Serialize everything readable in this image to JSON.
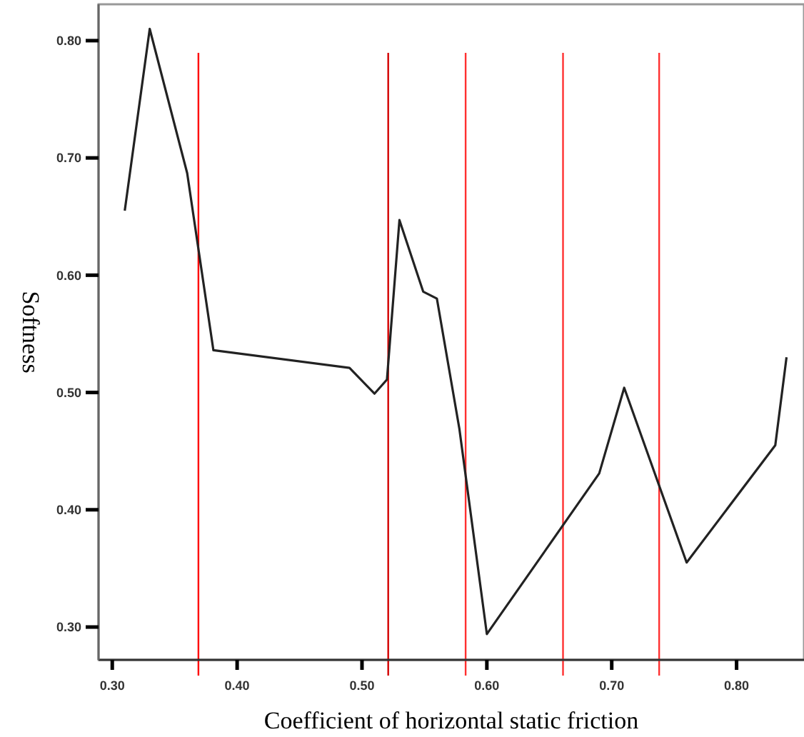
{
  "chart_data": {
    "type": "line",
    "xlabel": "Coefficient of horizontal static friction",
    "ylabel": "Softness",
    "xlim": [
      0.289,
      0.854
    ],
    "ylim": [
      0.272,
      0.831
    ],
    "xticks": [
      {
        "value": 0.3,
        "label": "0.30"
      },
      {
        "value": 0.4,
        "label": "0.40"
      },
      {
        "value": 0.5,
        "label": "0.50"
      },
      {
        "value": 0.6,
        "label": "0.60"
      },
      {
        "value": 0.7,
        "label": "0.70"
      },
      {
        "value": 0.8,
        "label": "0.80"
      }
    ],
    "yticks": [
      {
        "value": 0.3,
        "label": "0.30"
      },
      {
        "value": 0.4,
        "label": "0.40"
      },
      {
        "value": 0.5,
        "label": "0.50"
      },
      {
        "value": 0.6,
        "label": "0.60"
      },
      {
        "value": 0.7,
        "label": "0.70"
      },
      {
        "value": 0.8,
        "label": "0.80"
      }
    ],
    "grid": false,
    "marker": "none",
    "line_style": "solid",
    "series": [
      {
        "color": "#222222",
        "x": [
          0.31,
          0.33,
          0.36,
          0.381,
          0.49,
          0.51,
          0.52,
          0.53,
          0.549,
          0.56,
          0.578,
          0.6,
          0.69,
          0.71,
          0.76,
          0.831,
          0.84
        ],
        "values": [
          0.655,
          0.81,
          0.687,
          0.536,
          0.521,
          0.499,
          0.511,
          0.647,
          0.586,
          0.58,
          0.469,
          0.294,
          0.431,
          0.504,
          0.355,
          0.455,
          0.53
        ]
      }
    ],
    "ref_lines": [
      {
        "axis": "x",
        "value": 0.369,
        "color": "#ff0000"
      },
      {
        "axis": "x",
        "value": 0.521,
        "color": "#d40000"
      },
      {
        "axis": "x",
        "value": 0.583,
        "color": "#ff3030"
      },
      {
        "axis": "x",
        "value": 0.661,
        "color": "#ff3030"
      },
      {
        "axis": "x",
        "value": 0.738,
        "color": "#ff3030"
      }
    ]
  }
}
